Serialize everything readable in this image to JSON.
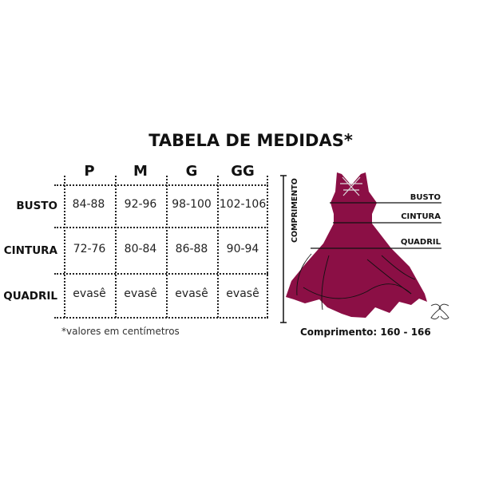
{
  "title": "TABELA DE MEDIDAS*",
  "table": {
    "sizes": [
      "P",
      "M",
      "G",
      "GG"
    ],
    "rows": [
      {
        "label": "BUSTO",
        "values": [
          "84-88",
          "92-96",
          "98-100",
          "102-106"
        ]
      },
      {
        "label": "CINTURA",
        "values": [
          "72-76",
          "80-84",
          "86-88",
          "90-94"
        ]
      },
      {
        "label": "QUADRIL",
        "values": [
          "evasê",
          "evasê",
          "evasê",
          "evasê"
        ]
      }
    ]
  },
  "note": "*valores em centímetros",
  "diagram": {
    "vertical_label": "COMPRIMENTO",
    "labels": {
      "bust": "BUSTO",
      "waist": "CINTURA",
      "hip": "QUADRIL"
    },
    "length_text": "Comprimento: 160 - 166",
    "dress_color": "#8b0f45"
  }
}
